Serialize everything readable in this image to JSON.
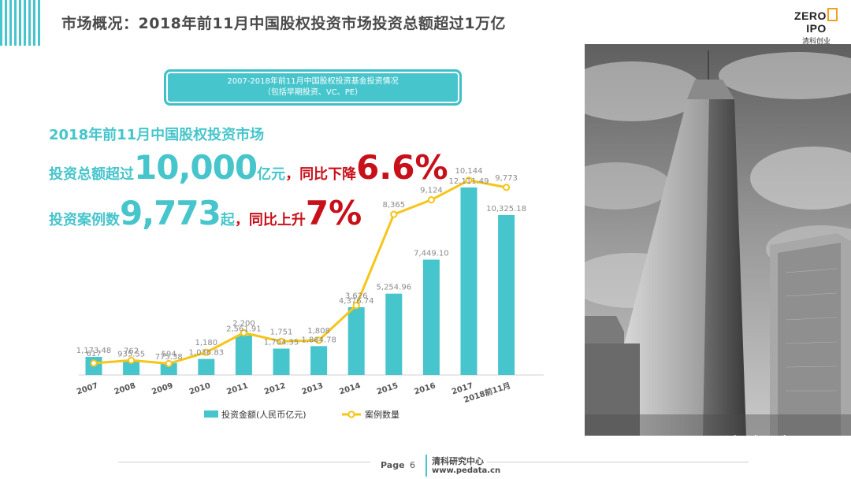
{
  "title": "市场概况：2018年前11月中国股权投资市场投资总额超过1万亿",
  "logo": {
    "main_left": "ZERO",
    "main_right": "IPO",
    "sub": "清科创业"
  },
  "subtitle": {
    "line1": "2007-2018年前11月中国股权投资基金投资情况",
    "line2": "（包括早期投资、VC、PE）"
  },
  "headline": {
    "line1": "2018年前11月中国股权投资市场",
    "line2_prefix": "投资总额超过",
    "line2_big": "10,000",
    "line2_unit": "亿元",
    "line2_sep": "，",
    "line2_red": "同比下降",
    "line2_pct": "6.6%",
    "line3_prefix": "投资案例数",
    "line3_big": "9,773",
    "line3_unit": "起",
    "line3_sep": "，",
    "line3_red": "同比上升",
    "line3_pct": "7%"
  },
  "colors": {
    "accent": "#46c5cc",
    "line": "#f5c518",
    "red": "#c8101a",
    "title": "#4a4a4a"
  },
  "chart_data": {
    "type": "bar",
    "categories": [
      "2007",
      "2008",
      "2009",
      "2010",
      "2011",
      "2012",
      "2013",
      "2014",
      "2015",
      "2016",
      "2017",
      "2018前11月"
    ],
    "series": [
      {
        "name": "投资金额(人民币亿元)",
        "type": "bar",
        "values": [
          1173.48,
          935.55,
          775.38,
          1036.83,
          2561.91,
          1704.35,
          1864.78,
          4376.74,
          5254.96,
          7449.1,
          12111.49,
          10325.18
        ],
        "labels": [
          "1,173.48",
          "935.55",
          "775.38",
          "1,036.83",
          "2,561.91",
          "1,704.35",
          "1,864.78",
          "4,376.74",
          "5,254.96",
          "7,449.10",
          "12,111.49",
          "10,325.18"
        ]
      },
      {
        "name": "案例数量",
        "type": "line",
        "values": [
          617,
          762,
          594,
          1180,
          2200,
          1751,
          1808,
          3626,
          8365,
          9124,
          10144,
          9773
        ],
        "labels": [
          "617",
          "762",
          "594",
          "1,180",
          "2,200",
          "1,751",
          "1,808",
          "3,626",
          "8,365",
          "9,124",
          "10,144",
          "9,773"
        ]
      }
    ]
  },
  "watermark": "清科研究",
  "footer": {
    "page_label": "Page",
    "page_number": "6",
    "org": "清科研究中心",
    "url": "www.pedata.cn"
  }
}
